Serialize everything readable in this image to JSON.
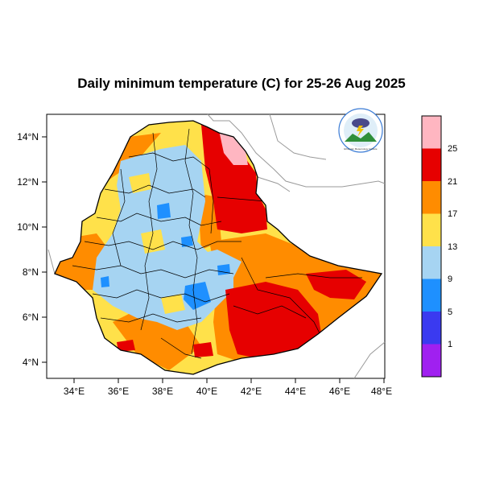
{
  "title": "Daily minimum temperature (C) for 25-26 Aug 2025",
  "map": {
    "x_ticks": [
      "34°E",
      "36°E",
      "38°E",
      "40°E",
      "42°E",
      "44°E",
      "46°E",
      "48°E"
    ],
    "y_ticks": [
      "14°N",
      "12°N",
      "10°N",
      "8°N",
      "6°N",
      "4°N"
    ],
    "lon_range": [
      33,
      48.2
    ],
    "lat_range": [
      3.3,
      15
    ]
  },
  "legend": {
    "levels": [
      "1",
      "5",
      "9",
      "13",
      "17",
      "21",
      "25"
    ],
    "colors": [
      "#a020f0",
      "#3a3af0",
      "#1e90ff",
      "#a6d4f2",
      "#ffe14a",
      "#ff8c00",
      "#e60000",
      "#ffb6c1"
    ]
  },
  "logo": {
    "icon": "meteorology-agency-logo",
    "text": "Ethiopian Meteorology Institute"
  }
}
